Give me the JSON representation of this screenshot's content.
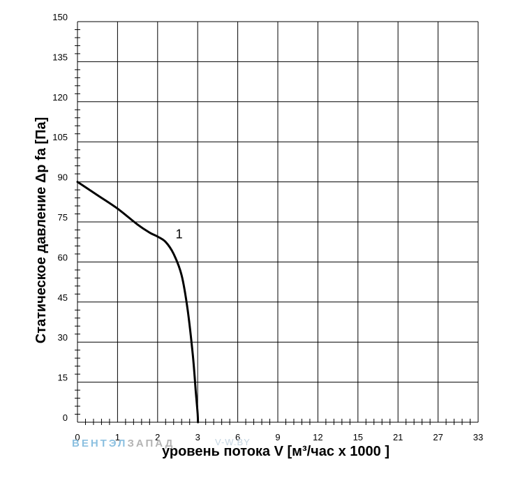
{
  "colors": {
    "grid": "#000000",
    "curve": "#000000",
    "background": "#ffffff",
    "watermark_blue": "#8cc0e0",
    "watermark_gray": "#b4b4b4",
    "watermark_site": "#c4d4e0"
  },
  "watermark": {
    "part1": "ВЕНТЭЛ",
    "part2": "ЗАПАД",
    "site": "V-W.BY"
  },
  "chart_data": {
    "type": "line",
    "xlabel": "уровень потока  V [м³/час x 1000 ]",
    "ylabel": "Статическое давление  Δp fa [Па]",
    "x_scale": "piecewise: 0–3 step 1, 3–33 step 3 (each gridline column equal width)",
    "xlim": [
      0,
      33
    ],
    "ylim": [
      0,
      150
    ],
    "x_ticks": [
      "0",
      "1",
      "2",
      "3",
      "6",
      "9",
      "12",
      "15",
      "21",
      "27",
      "33"
    ],
    "y_ticks": [
      "0",
      "15",
      "30",
      "45",
      "60",
      "75",
      "90",
      "105",
      "120",
      "135",
      "150"
    ],
    "grid": true,
    "series": [
      {
        "name": "1",
        "x": [
          0,
          0.5,
          1.0,
          1.5,
          1.8,
          2.0,
          2.2,
          2.4,
          2.6,
          2.75,
          2.88,
          2.95,
          3.0,
          3.02
        ],
        "y": [
          90,
          85,
          80,
          74,
          71,
          69.5,
          67.5,
          63,
          55,
          42,
          25,
          12,
          3,
          0
        ]
      }
    ]
  }
}
